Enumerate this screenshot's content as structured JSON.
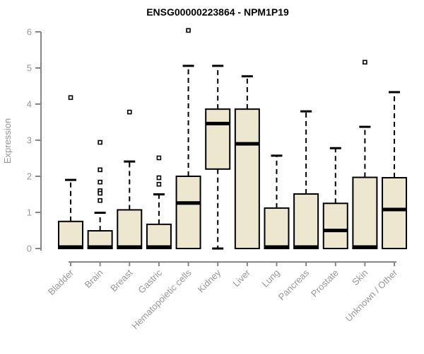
{
  "chart_data": {
    "type": "boxplot",
    "title": "ENSG00000223864 - NPM1P19",
    "ylabel": "Expression",
    "xlabel": "",
    "yticks": [
      0,
      1,
      2,
      3,
      4,
      5,
      6
    ],
    "ylim": [
      0,
      6.2
    ],
    "grid": false,
    "legend": "none",
    "categories": [
      "Bladder",
      "Brain",
      "Breast",
      "Gastric",
      "Hematopoietic cells",
      "Kidney",
      "Liver",
      "Lung",
      "Pancreas",
      "Prostate",
      "Skin",
      "Unknown / Other"
    ],
    "series": [
      {
        "category": "Bladder",
        "min": 0,
        "q1": 0,
        "median": 0.04,
        "q3": 0.75,
        "max": 1.9,
        "outliers": [
          4.18
        ]
      },
      {
        "category": "Brain",
        "min": 0,
        "q1": 0,
        "median": 0.04,
        "q3": 0.49,
        "max": 0.99,
        "outliers": [
          2.94,
          2.18,
          1.84,
          1.6,
          1.53,
          1.33
        ]
      },
      {
        "category": "Breast",
        "min": 0,
        "q1": 0,
        "median": 0.04,
        "q3": 1.07,
        "max": 2.41,
        "outliers": [
          3.78
        ]
      },
      {
        "category": "Gastric",
        "min": 0,
        "q1": 0,
        "median": 0.04,
        "q3": 0.67,
        "max": 1.5,
        "outliers": [
          2.51,
          1.96,
          1.78
        ]
      },
      {
        "category": "Hematopoietic cells",
        "min": 0,
        "q1": 0,
        "median": 1.26,
        "q3": 2.0,
        "max": 5.06,
        "outliers": [
          6.04
        ]
      },
      {
        "category": "Kidney",
        "min": 0,
        "q1": 2.2,
        "median": 3.46,
        "q3": 3.86,
        "max": 5.06,
        "outliers": []
      },
      {
        "category": "Liver",
        "min": 0,
        "q1": 0,
        "median": 2.9,
        "q3": 3.86,
        "max": 4.77,
        "outliers": []
      },
      {
        "category": "Lung",
        "min": 0,
        "q1": 0,
        "median": 0.04,
        "q3": 1.12,
        "max": 2.57,
        "outliers": []
      },
      {
        "category": "Pancreas",
        "min": 0,
        "q1": 0,
        "median": 0.04,
        "q3": 1.51,
        "max": 3.8,
        "outliers": []
      },
      {
        "category": "Prostate",
        "min": 0,
        "q1": 0,
        "median": 0.5,
        "q3": 1.25,
        "max": 2.78,
        "outliers": []
      },
      {
        "category": "Skin",
        "min": 0,
        "q1": 0,
        "median": 0.04,
        "q3": 1.97,
        "max": 3.37,
        "outliers": [
          5.16
        ]
      },
      {
        "category": "Unknown / Other",
        "min": 0,
        "q1": 0,
        "median": 1.08,
        "q3": 1.96,
        "max": 4.33,
        "outliers": []
      }
    ],
    "colors": {
      "box_fill": "#ede7cf",
      "box_border": "#000000",
      "median": "#000000",
      "whisker": "#000000",
      "outlier_stroke": "#000000",
      "outlier_fill": "#ffffff",
      "axis_line": "#868686",
      "tick_label": "#979797",
      "title": "#000000",
      "background": "#ffffff"
    }
  }
}
